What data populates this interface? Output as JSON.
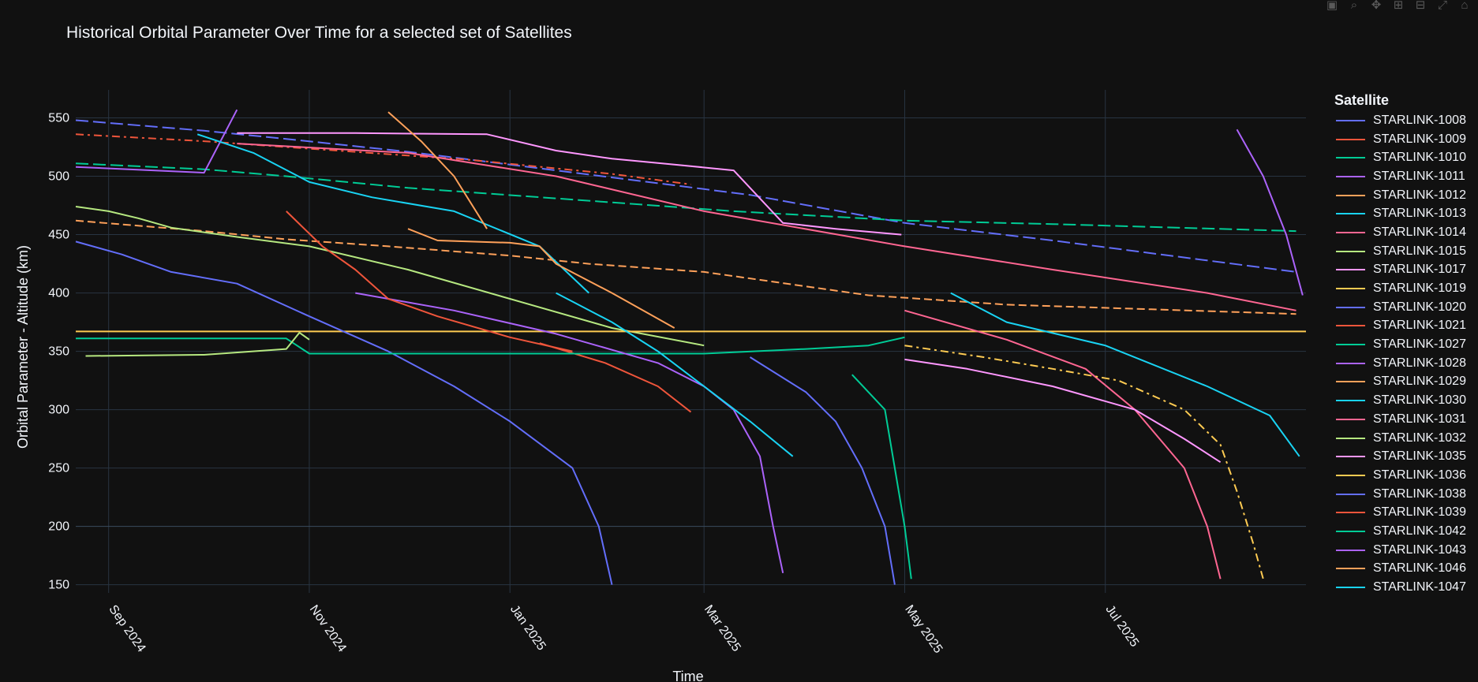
{
  "modebar": {
    "buttons": [
      {
        "name": "camera-icon",
        "glyph": "▣"
      },
      {
        "name": "zoom-icon",
        "glyph": "⌕"
      },
      {
        "name": "pan-icon",
        "glyph": "✥"
      },
      {
        "name": "zoom-in-icon",
        "glyph": "⊞"
      },
      {
        "name": "zoom-out-icon",
        "glyph": "⊟"
      },
      {
        "name": "autoscale-icon",
        "glyph": "⤢"
      },
      {
        "name": "home-icon",
        "glyph": "⌂"
      }
    ]
  },
  "chart_data": {
    "type": "line",
    "title": "Historical Orbital Parameter Over Time for a selected set of Satellites",
    "xlabel": "Time",
    "ylabel": "Orbital Parameter - Altitude (km)",
    "x_tick_labels": [
      {
        "date": "2024-09-01",
        "label": "Sep 2024"
      },
      {
        "date": "2024-11-01",
        "label": "Nov 2024"
      },
      {
        "date": "2025-01-01",
        "label": "Jan 2025"
      },
      {
        "date": "2025-03-01",
        "label": "Mar 2025"
      },
      {
        "date": "2025-05-01",
        "label": "May 2025"
      },
      {
        "date": "2025-07-01",
        "label": "Jul 2025"
      }
    ],
    "xlim": [
      "2024-08-22",
      "2025-08-31"
    ],
    "y_ticks": [
      150,
      200,
      250,
      300,
      350,
      400,
      450,
      500,
      550
    ],
    "ylim": [
      143,
      574
    ],
    "grid": true,
    "legend_title": "Satellite",
    "legend_position": "right",
    "series": [
      {
        "name": "STARLINK-1008",
        "color": "#636efa",
        "dash": "longdash",
        "points": [
          [
            "2024-08-22",
            548
          ],
          [
            "2024-09-30",
            539
          ],
          [
            "2024-10-25",
            532
          ],
          [
            "2024-12-01",
            521
          ],
          [
            "2025-01-15",
            505
          ],
          [
            "2025-03-15",
            484
          ],
          [
            "2025-05-01",
            460
          ],
          [
            "2025-06-15",
            445
          ],
          [
            "2025-08-28",
            418
          ]
        ]
      },
      {
        "name": "STARLINK-1009",
        "color": "#EF553B",
        "dash": "dashdot",
        "points": [
          [
            "2024-08-22",
            536
          ],
          [
            "2024-09-30",
            530
          ],
          [
            "2024-10-25",
            525
          ],
          [
            "2024-12-20",
            514
          ],
          [
            "2025-02-01",
            502
          ],
          [
            "2025-02-25",
            493
          ]
        ]
      },
      {
        "name": "STARLINK-1010",
        "color": "#00cc96",
        "dash": "longdash",
        "points": [
          [
            "2024-08-22",
            511
          ],
          [
            "2024-09-30",
            506
          ],
          [
            "2024-10-25",
            500
          ],
          [
            "2024-12-01",
            490
          ],
          [
            "2025-01-20",
            480
          ],
          [
            "2025-03-10",
            470
          ],
          [
            "2025-05-01",
            462
          ],
          [
            "2025-06-15",
            459
          ],
          [
            "2025-08-28",
            453
          ]
        ]
      },
      {
        "name": "STARLINK-1011",
        "color": "#ab63fa",
        "dash": "solid",
        "points": [
          [
            "2024-08-22",
            508
          ],
          [
            "2024-09-30",
            503
          ],
          [
            "2024-10-10",
            557
          ]
        ]
      },
      {
        "name": "STARLINK-1012",
        "color": "#FFA15A",
        "dash": "dash",
        "points": [
          [
            "2024-08-22",
            462
          ],
          [
            "2024-09-30",
            453
          ],
          [
            "2024-10-25",
            446
          ],
          [
            "2024-11-25",
            440
          ],
          [
            "2025-01-01",
            432
          ],
          [
            "2025-01-25",
            425
          ],
          [
            "2025-03-01",
            418
          ],
          [
            "2025-04-20",
            398
          ],
          [
            "2025-06-01",
            390
          ],
          [
            "2025-07-15",
            386
          ],
          [
            "2025-08-28",
            382
          ]
        ]
      },
      {
        "name": "STARLINK-1013",
        "color": "#19d3f3",
        "dash": "solid",
        "points": [
          [
            "2024-09-28",
            536
          ],
          [
            "2024-10-15",
            520
          ],
          [
            "2024-11-01",
            495
          ],
          [
            "2024-11-20",
            482
          ],
          [
            "2024-12-15",
            470
          ],
          [
            "2025-01-10",
            440
          ],
          [
            "2025-01-25",
            400
          ]
        ]
      },
      {
        "name": "STARLINK-1014",
        "color": "#FF6692",
        "dash": "solid",
        "points": [
          [
            "2024-10-10",
            528
          ],
          [
            "2024-12-01",
            520
          ],
          [
            "2025-01-15",
            500
          ],
          [
            "2025-03-01",
            470
          ],
          [
            "2025-05-01",
            440
          ],
          [
            "2025-06-15",
            420
          ],
          [
            "2025-08-01",
            400
          ],
          [
            "2025-08-28",
            385
          ]
        ]
      },
      {
        "name": "STARLINK-1015",
        "color": "#B6E880",
        "dash": "solid",
        "points": [
          [
            "2024-08-22",
            474
          ],
          [
            "2024-09-01",
            470
          ],
          [
            "2024-09-10",
            464
          ],
          [
            "2024-09-20",
            456
          ],
          [
            "2024-10-10",
            448
          ],
          [
            "2024-11-01",
            440
          ],
          [
            "2024-12-01",
            420
          ],
          [
            "2025-01-01",
            395
          ],
          [
            "2025-02-01",
            370
          ],
          [
            "2025-03-01",
            355
          ]
        ]
      },
      {
        "name": "STARLINK-1017",
        "color": "#FF97FF",
        "dash": "solid",
        "points": [
          [
            "2024-10-10",
            537
          ],
          [
            "2024-11-15",
            537
          ],
          [
            "2024-12-25",
            536
          ],
          [
            "2025-01-15",
            522
          ],
          [
            "2025-02-01",
            515
          ],
          [
            "2025-02-20",
            510
          ],
          [
            "2025-03-10",
            505
          ],
          [
            "2025-03-25",
            460
          ],
          [
            "2025-04-10",
            455
          ],
          [
            "2025-04-30",
            450
          ]
        ]
      },
      {
        "name": "STARLINK-1019",
        "color": "#FECB52",
        "dash": "solid",
        "points": [
          [
            "2024-08-22",
            367
          ],
          [
            "2024-11-01",
            367
          ],
          [
            "2025-01-01",
            367
          ],
          [
            "2025-03-01",
            367
          ],
          [
            "2025-05-01",
            367
          ],
          [
            "2025-07-01",
            367
          ],
          [
            "2025-08-31",
            367
          ]
        ]
      },
      {
        "name": "STARLINK-1020",
        "color": "#636efa",
        "dash": "solid",
        "points": [
          [
            "2024-08-22",
            444
          ],
          [
            "2024-09-05",
            433
          ],
          [
            "2024-09-20",
            418
          ],
          [
            "2024-10-10",
            408
          ],
          [
            "2024-11-01",
            380
          ],
          [
            "2024-11-25",
            350
          ],
          [
            "2024-12-15",
            320
          ],
          [
            "2025-01-01",
            290
          ],
          [
            "2025-01-20",
            250
          ],
          [
            "2025-01-28",
            200
          ],
          [
            "2025-02-01",
            150
          ]
        ]
      },
      {
        "name": "STARLINK-1021",
        "color": "#EF553B",
        "dash": "solid",
        "points": [
          [
            "2025-01-10",
            357
          ],
          [
            "2025-01-30",
            340
          ],
          [
            "2025-02-15",
            320
          ],
          [
            "2025-02-25",
            298
          ]
        ]
      },
      {
        "name": "STARLINK-1027",
        "color": "#00cc96",
        "dash": "solid",
        "points": [
          [
            "2024-08-22",
            361
          ],
          [
            "2024-09-30",
            361
          ],
          [
            "2024-10-10",
            361
          ],
          [
            "2024-10-25",
            361
          ],
          [
            "2024-11-01",
            348
          ],
          [
            "2024-12-01",
            348
          ],
          [
            "2025-01-01",
            348
          ],
          [
            "2025-02-01",
            348
          ],
          [
            "2025-03-01",
            348
          ],
          [
            "2025-04-01",
            352
          ],
          [
            "2025-04-20",
            355
          ],
          [
            "2025-05-01",
            362
          ]
        ]
      },
      {
        "name": "STARLINK-1028",
        "color": "#ab63fa",
        "dash": "solid",
        "points": [
          [
            "2024-11-15",
            400
          ],
          [
            "2024-12-15",
            385
          ],
          [
            "2025-01-15",
            365
          ],
          [
            "2025-02-15",
            340
          ],
          [
            "2025-03-01",
            320
          ],
          [
            "2025-03-10",
            300
          ],
          [
            "2025-03-18",
            260
          ],
          [
            "2025-03-22",
            200
          ],
          [
            "2025-03-25",
            160
          ]
        ]
      },
      {
        "name": "STARLINK-1029",
        "color": "#FFA15A",
        "dash": "solid",
        "points": [
          [
            "2024-12-01",
            455
          ],
          [
            "2024-12-10",
            445
          ],
          [
            "2025-01-01",
            443
          ],
          [
            "2025-01-10",
            440
          ],
          [
            "2025-01-15",
            425
          ],
          [
            "2025-02-01",
            400
          ],
          [
            "2025-02-20",
            370
          ]
        ]
      },
      {
        "name": "STARLINK-1030",
        "color": "#19d3f3",
        "dash": "solid",
        "points": [
          [
            "2025-01-15",
            400
          ],
          [
            "2025-02-01",
            375
          ],
          [
            "2025-02-15",
            350
          ],
          [
            "2025-03-01",
            320
          ],
          [
            "2025-03-15",
            290
          ],
          [
            "2025-03-28",
            260
          ]
        ]
      },
      {
        "name": "STARLINK-1031",
        "color": "#FF6692",
        "dash": "solid",
        "points": [
          [
            "2025-05-01",
            385
          ],
          [
            "2025-06-01",
            360
          ],
          [
            "2025-06-25",
            335
          ],
          [
            "2025-07-10",
            300
          ],
          [
            "2025-07-25",
            250
          ],
          [
            "2025-08-01",
            200
          ],
          [
            "2025-08-05",
            155
          ]
        ]
      },
      {
        "name": "STARLINK-1032",
        "color": "#B6E880",
        "dash": "solid",
        "points": [
          [
            "2024-08-25",
            346
          ],
          [
            "2024-09-30",
            347
          ],
          [
            "2024-10-25",
            352
          ],
          [
            "2024-10-29",
            366
          ],
          [
            "2024-11-01",
            360
          ]
        ]
      },
      {
        "name": "STARLINK-1035",
        "color": "#FF97FF",
        "dash": "solid",
        "points": [
          [
            "2025-05-01",
            343
          ],
          [
            "2025-05-20",
            335
          ],
          [
            "2025-06-15",
            320
          ],
          [
            "2025-07-10",
            300
          ],
          [
            "2025-07-25",
            275
          ],
          [
            "2025-08-05",
            255
          ]
        ]
      },
      {
        "name": "STARLINK-1036",
        "color": "#FECB52",
        "dash": "dashdot",
        "points": [
          [
            "2025-05-01",
            355
          ],
          [
            "2025-05-25",
            345
          ],
          [
            "2025-06-15",
            335
          ],
          [
            "2025-07-05",
            325
          ],
          [
            "2025-07-25",
            300
          ],
          [
            "2025-08-05",
            270
          ],
          [
            "2025-08-10",
            230
          ],
          [
            "2025-08-15",
            185
          ],
          [
            "2025-08-18",
            155
          ]
        ]
      },
      {
        "name": "STARLINK-1038",
        "color": "#636efa",
        "dash": "solid",
        "points": [
          [
            "2025-03-15",
            345
          ],
          [
            "2025-04-01",
            315
          ],
          [
            "2025-04-10",
            290
          ],
          [
            "2025-04-18",
            250
          ],
          [
            "2025-04-25",
            200
          ],
          [
            "2025-04-28",
            150
          ]
        ]
      },
      {
        "name": "STARLINK-1039",
        "color": "#EF553B",
        "dash": "solid",
        "points": [
          [
            "2024-10-25",
            470
          ],
          [
            "2024-11-05",
            440
          ],
          [
            "2024-11-15",
            420
          ],
          [
            "2024-11-25",
            395
          ],
          [
            "2024-12-10",
            380
          ],
          [
            "2025-01-01",
            362
          ],
          [
            "2025-01-20",
            350
          ]
        ]
      },
      {
        "name": "STARLINK-1042",
        "color": "#00cc96",
        "dash": "solid",
        "points": [
          [
            "2025-04-15",
            330
          ],
          [
            "2025-04-25",
            300
          ],
          [
            "2025-04-28",
            250
          ],
          [
            "2025-05-01",
            200
          ],
          [
            "2025-05-03",
            155
          ]
        ]
      },
      {
        "name": "STARLINK-1043",
        "color": "#ab63fa",
        "dash": "solid",
        "points": [
          [
            "2025-08-10",
            540
          ],
          [
            "2025-08-18",
            500
          ],
          [
            "2025-08-25",
            450
          ],
          [
            "2025-08-30",
            398
          ]
        ]
      },
      {
        "name": "STARLINK-1046",
        "color": "#FFA15A",
        "dash": "solid",
        "points": [
          [
            "2024-11-25",
            555
          ],
          [
            "2024-12-05",
            530
          ],
          [
            "2024-12-15",
            500
          ],
          [
            "2024-12-25",
            455
          ]
        ]
      },
      {
        "name": "STARLINK-1047",
        "color": "#19d3f3",
        "dash": "solid",
        "points": [
          [
            "2025-05-15",
            400
          ],
          [
            "2025-06-01",
            375
          ],
          [
            "2025-07-01",
            355
          ],
          [
            "2025-08-01",
            320
          ],
          [
            "2025-08-20",
            295
          ],
          [
            "2025-08-29",
            260
          ]
        ]
      }
    ]
  }
}
